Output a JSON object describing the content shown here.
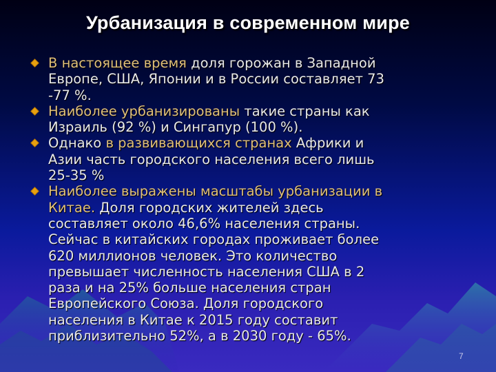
{
  "slide": {
    "title": "Урбанизация в современном мире",
    "page_number": "7",
    "colors": {
      "bullet": "#e8a010",
      "highlight": "#e0bf78",
      "text": "#e8e8e8"
    },
    "bullets": [
      {
        "highlight": "В настоящее время",
        "text": " доля горожан в Западной\nЕвропе, США, Японии и в России составляет 73\n-77 %."
      },
      {
        "highlight": "Наиболее урбанизированы",
        "text": " такие страны как\nИзраиль (92 %) и Сингапур (100 %)."
      },
      {
        "pre": "Однако ",
        "highlight": "в развивающихся странах",
        "text": " Африки и\nАзии часть городского населения  всего лишь\n25-35 %"
      },
      {
        "highlight": "Наиболее выражены масштабы урбанизации в\nКитае.",
        "text": " Доля городских жителей здесь\nсоставляет около 46,6% населения страны.\nСейчас в китайских городах проживает более\n620 миллионов человек. Это количество\nпревышает численность населения США в 2\nраза и на 25% больше населения стран\nЕвропейского Союза. Доля городского\nнаселения в Китае к 2015 году составит\nприблизительно 52%, а в 2030 году  - 65%."
      }
    ]
  }
}
